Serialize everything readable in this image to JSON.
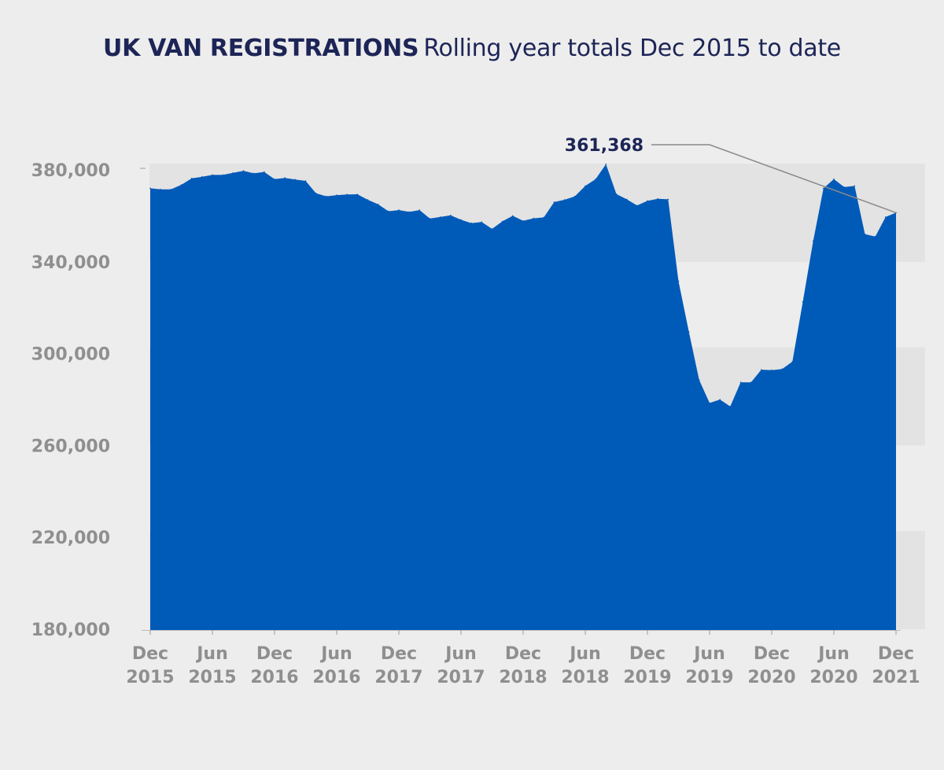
{
  "colors": {
    "background": "#ededed",
    "band": "#e3e3e3",
    "area": "#005ab8",
    "title": "#1d2557",
    "tick_text": "#8f8f8f",
    "leader_line": "#8a8a8a"
  },
  "title": {
    "bold": "UK VAN REGISTRATIONS",
    "light": "Rolling year totals Dec 2015 to date"
  },
  "chart_data": {
    "type": "area",
    "title": "UK VAN REGISTRATIONS Rolling year totals Dec 2015 to date",
    "xlabel": "",
    "ylabel": "",
    "ylim": [
      180000,
      380000
    ],
    "grid": "alternating horizontal bands",
    "legend": "none",
    "y_ticks": [
      "380,000",
      "340,000",
      "300,000",
      "260,000",
      "220,000",
      "180,000"
    ],
    "x_ticks": [
      {
        "month": "Dec",
        "year": "2015",
        "index": 0
      },
      {
        "month": "Jun",
        "year": "2015",
        "index": 6
      },
      {
        "month": "Dec",
        "year": "2016",
        "index": 12
      },
      {
        "month": "Jun",
        "year": "2016",
        "index": 18
      },
      {
        "month": "Dec",
        "year": "2017",
        "index": 24
      },
      {
        "month": "Jun",
        "year": "2017",
        "index": 30
      },
      {
        "month": "Dec",
        "year": "2018",
        "index": 36
      },
      {
        "month": "Jun",
        "year": "2018",
        "index": 42
      },
      {
        "month": "Dec",
        "year": "2019",
        "index": 48
      },
      {
        "month": "Jun",
        "year": "2019",
        "index": 54
      },
      {
        "month": "Dec",
        "year": "2020",
        "index": 60
      },
      {
        "month": "Jun",
        "year": "2020",
        "index": 66
      },
      {
        "month": "Dec",
        "year": "2021",
        "index": 72
      }
    ],
    "series": [
      {
        "values": [
          372000,
          371500,
          371500,
          373500,
          376300,
          377000,
          377800,
          377800,
          378700,
          379600,
          378500,
          379100,
          376000,
          376500,
          375800,
          375200,
          369800,
          368500,
          369000,
          369300,
          369400,
          367000,
          365000,
          362000,
          362500,
          361700,
          362500,
          358800,
          359500,
          360200,
          358300,
          356800,
          357300,
          354300,
          357600,
          360000,
          357800,
          358900,
          359300,
          366000,
          367000,
          368500,
          373000,
          376000,
          382500,
          369500,
          367200,
          364500,
          366500,
          367400,
          367200,
          331500,
          309500,
          288500,
          278500,
          280000,
          277000,
          287500,
          287500,
          293000,
          292800,
          293300,
          296500,
          322500,
          349000,
          372000,
          376000,
          372500,
          373000,
          352000,
          351000,
          359500,
          361368
        ]
      }
    ],
    "annotation": {
      "label": "361,368",
      "value": 361368,
      "index": 72
    }
  }
}
